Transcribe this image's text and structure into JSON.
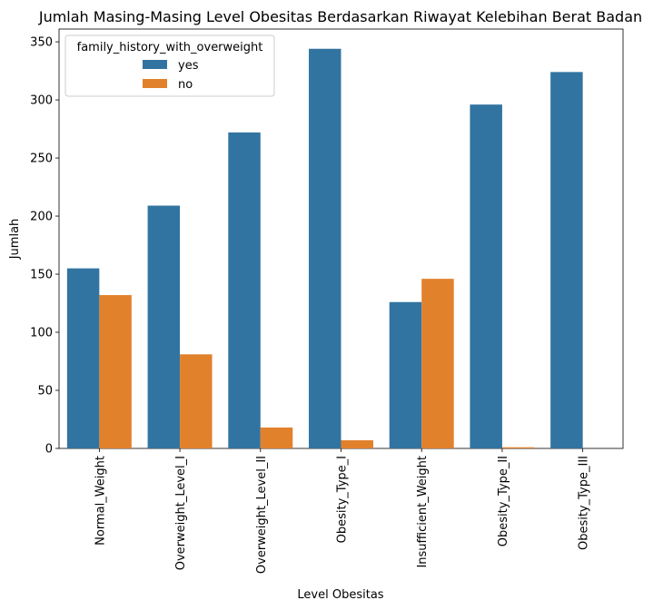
{
  "chart_data": {
    "type": "bar",
    "title": "Jumlah Masing-Masing Level Obesitas Berdasarkan Riwayat Kelebihan Berat Badan",
    "xlabel": "Level Obesitas",
    "ylabel": "Jumlah",
    "categories": [
      "Normal_Weight",
      "Overweight_Level_I",
      "Overweight_Level_II",
      "Obesity_Type_I",
      "Insufficient_Weight",
      "Obesity_Type_II",
      "Obesity_Type_III"
    ],
    "series": [
      {
        "name": "yes",
        "color": "#3274a1",
        "values": [
          155,
          209,
          272,
          344,
          126,
          296,
          324
        ]
      },
      {
        "name": "no",
        "color": "#e1812c",
        "values": [
          132,
          81,
          18,
          7,
          146,
          1,
          0
        ]
      }
    ],
    "ylim": [
      0,
      361
    ],
    "yticks": [
      0,
      50,
      100,
      150,
      200,
      250,
      300,
      350
    ],
    "legend": {
      "title": "family_history_with_overweight",
      "placement": "top-left"
    },
    "grid": false
  }
}
